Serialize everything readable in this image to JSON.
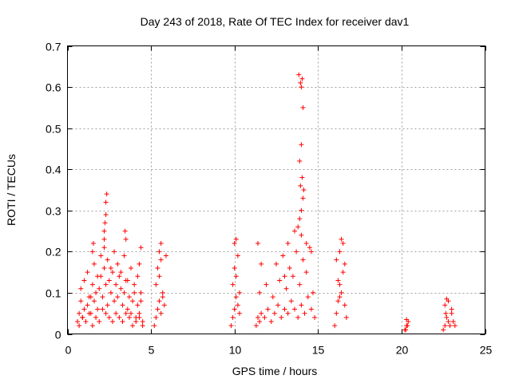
{
  "chart_data": {
    "type": "scatter",
    "title": "Day 243 of 2018, Rate Of TEC Index for receiver dav1",
    "xlabel": "GPS time / hours",
    "ylabel": "ROTI / TECUs",
    "xlim": [
      0,
      25
    ],
    "ylim": [
      0,
      0.7
    ],
    "xticks": [
      0,
      5,
      10,
      15,
      20,
      25
    ],
    "yticks": [
      0,
      0.1,
      0.2,
      0.3,
      0.4,
      0.5,
      0.6,
      0.7
    ],
    "xtick_labels": [
      "0",
      "5",
      "10",
      "15",
      "20",
      "25"
    ],
    "ytick_labels": [
      "0",
      "0.1",
      "0.2",
      "0.3",
      "0.4",
      "0.5",
      "0.6",
      "0.7"
    ],
    "grid": true,
    "marker": "+",
    "color": "#ff0000",
    "series": [
      {
        "name": "ROTI",
        "x": [
          0.6,
          0.7,
          0.8,
          0.9,
          1.0,
          1.1,
          1.2,
          1.3,
          1.4,
          1.5,
          1.6,
          1.7,
          1.8,
          1.9,
          2.0,
          2.1,
          2.2,
          2.3,
          2.4,
          2.5,
          2.6,
          2.7,
          2.8,
          2.9,
          3.0,
          3.1,
          3.2,
          3.3,
          3.4,
          3.5,
          3.6,
          3.7,
          3.8,
          3.9,
          4.0,
          4.1,
          4.2,
          4.3,
          4.4,
          4.5,
          0.7,
          0.9,
          1.1,
          1.3,
          1.5,
          1.7,
          1.9,
          2.1,
          2.3,
          2.5,
          2.7,
          2.9,
          3.1,
          3.3,
          3.5,
          3.7,
          3.9,
          4.1,
          4.3,
          4.5,
          0.8,
          1.0,
          1.2,
          1.4,
          1.6,
          1.8,
          2.0,
          2.2,
          2.4,
          2.6,
          2.8,
          3.0,
          3.2,
          3.4,
          3.6,
          3.8,
          4.0,
          4.2,
          4.4,
          2.2,
          2.25,
          2.3,
          2.35,
          2.2,
          2.3,
          1.5,
          1.55,
          3.5,
          3.45,
          4.3,
          4.4,
          5.2,
          5.3,
          5.4,
          5.5,
          5.6,
          5.7,
          5.8,
          5.3,
          5.5,
          5.7,
          5.4,
          5.6,
          5.5,
          5.6,
          5.9,
          9.8,
          9.9,
          10.0,
          10.1,
          10.2,
          10.3,
          9.9,
          10.1,
          10.3,
          10.0,
          10.2,
          10.0,
          10.1,
          11.3,
          11.4,
          11.5,
          11.6,
          11.8,
          12.0,
          12.2,
          12.4,
          12.6,
          12.8,
          13.0,
          13.2,
          13.4,
          13.6,
          13.8,
          14.0,
          14.2,
          14.4,
          14.6,
          14.8,
          11.5,
          11.9,
          12.3,
          12.7,
          13.1,
          13.5,
          13.9,
          14.3,
          14.7,
          12.5,
          12.9,
          13.3,
          13.7,
          14.1,
          14.5,
          11.4,
          11.6,
          13.0,
          13.2,
          13.6,
          13.8,
          14.0,
          14.3,
          14.6,
          13.9,
          14.0,
          14.1,
          13.95,
          14.05,
          13.9,
          14.0,
          14.1,
          14.0,
          13.95,
          14.05,
          13.85,
          14.15,
          16.0,
          16.1,
          16.2,
          16.3,
          16.4,
          16.5,
          16.6,
          16.7,
          16.1,
          16.3,
          16.5,
          16.2,
          16.4,
          16.6,
          16.3,
          20.2,
          20.3,
          20.4,
          20.3,
          20.25,
          20.35,
          22.5,
          22.6,
          22.7,
          22.8,
          22.9,
          23.0,
          23.1,
          23.2,
          22.6,
          22.8,
          23.0,
          22.7,
          22.65
        ],
        "y": [
          0.03,
          0.05,
          0.08,
          0.04,
          0.06,
          0.03,
          0.07,
          0.09,
          0.05,
          0.12,
          0.08,
          0.1,
          0.06,
          0.11,
          0.14,
          0.09,
          0.16,
          0.12,
          0.07,
          0.13,
          0.1,
          0.15,
          0.08,
          0.12,
          0.09,
          0.14,
          0.11,
          0.07,
          0.1,
          0.13,
          0.06,
          0.09,
          0.05,
          0.08,
          0.1,
          0.04,
          0.07,
          0.05,
          0.08,
          0.03,
          0.02,
          0.04,
          0.03,
          0.05,
          0.02,
          0.04,
          0.03,
          0.06,
          0.05,
          0.04,
          0.03,
          0.05,
          0.04,
          0.03,
          0.05,
          0.04,
          0.02,
          0.03,
          0.04,
          0.02,
          0.11,
          0.13,
          0.15,
          0.09,
          0.17,
          0.14,
          0.19,
          0.21,
          0.18,
          0.16,
          0.2,
          0.17,
          0.15,
          0.19,
          0.13,
          0.16,
          0.12,
          0.14,
          0.1,
          0.25,
          0.27,
          0.32,
          0.34,
          0.23,
          0.29,
          0.2,
          0.22,
          0.23,
          0.25,
          0.17,
          0.21,
          0.02,
          0.04,
          0.06,
          0.08,
          0.05,
          0.1,
          0.07,
          0.12,
          0.14,
          0.09,
          0.16,
          0.18,
          0.2,
          0.22,
          0.19,
          0.02,
          0.04,
          0.06,
          0.09,
          0.07,
          0.05,
          0.12,
          0.14,
          0.1,
          0.16,
          0.19,
          0.22,
          0.23,
          0.02,
          0.04,
          0.03,
          0.05,
          0.04,
          0.06,
          0.03,
          0.05,
          0.07,
          0.04,
          0.06,
          0.05,
          0.08,
          0.06,
          0.04,
          0.07,
          0.05,
          0.09,
          0.06,
          0.04,
          0.1,
          0.12,
          0.09,
          0.13,
          0.11,
          0.14,
          0.12,
          0.15,
          0.1,
          0.17,
          0.19,
          0.16,
          0.2,
          0.18,
          0.21,
          0.22,
          0.17,
          0.14,
          0.22,
          0.25,
          0.26,
          0.24,
          0.22,
          0.2,
          0.28,
          0.3,
          0.33,
          0.36,
          0.38,
          0.42,
          0.46,
          0.55,
          0.6,
          0.61,
          0.62,
          0.63,
          0.35,
          0.02,
          0.05,
          0.08,
          0.12,
          0.1,
          0.15,
          0.07,
          0.04,
          0.18,
          0.2,
          0.22,
          0.13,
          0.23,
          0.17,
          0.09,
          0.01,
          0.02,
          0.03,
          0.035,
          0.01,
          0.02,
          0.01,
          0.02,
          0.04,
          0.03,
          0.02,
          0.05,
          0.03,
          0.02,
          0.07,
          0.08,
          0.06,
          0.085,
          0.05
        ]
      }
    ]
  }
}
